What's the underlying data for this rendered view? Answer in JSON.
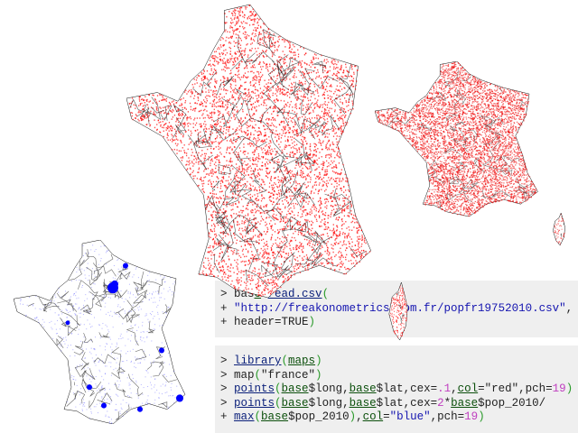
{
  "maps": [
    {
      "name": "france-red-points-large",
      "point_color": "#ff0000"
    },
    {
      "name": "france-red-points-small",
      "point_color": "#ee0000"
    },
    {
      "name": "france-blue-population",
      "point_color": "#0000ff"
    }
  ],
  "code_blocks": [
    {
      "lines": [
        [
          {
            "t": "> bas",
            "k": "plain"
          },
          {
            "t": "e",
            "k": "var"
          },
          {
            "t": "=",
            "k": "plain"
          },
          {
            "t": "read.csv",
            "k": "fn"
          },
          {
            "t": "(",
            "k": "paren"
          }
        ],
        [
          {
            "t": "+ ",
            "k": "plain"
          },
          {
            "t": "\"http://freakonometrics.com.fr/popfr19752010.csv\"",
            "k": "str"
          },
          {
            "t": ",",
            "k": "plain"
          }
        ],
        [
          {
            "t": "+ header=TRUE",
            "k": "plain"
          },
          {
            "t": ")",
            "k": "paren"
          }
        ]
      ]
    },
    {
      "lines": [
        [
          {
            "t": "> ",
            "k": "plain"
          },
          {
            "t": "library",
            "k": "fn"
          },
          {
            "t": "(",
            "k": "paren"
          },
          {
            "t": "maps",
            "k": "var"
          },
          {
            "t": ")",
            "k": "paren"
          }
        ],
        [
          {
            "t": "> map",
            "k": "plain"
          },
          {
            "t": "(",
            "k": "paren"
          },
          {
            "t": "\"france\"",
            "k": "plain"
          },
          {
            "t": ")",
            "k": "paren"
          }
        ],
        [
          {
            "t": "> ",
            "k": "plain"
          },
          {
            "t": "points",
            "k": "fn"
          },
          {
            "t": "(",
            "k": "paren"
          },
          {
            "t": "base",
            "k": "var"
          },
          {
            "t": "$long,",
            "k": "plain"
          },
          {
            "t": "base",
            "k": "var"
          },
          {
            "t": "$lat,cex=",
            "k": "plain"
          },
          {
            "t": ".1",
            "k": "num"
          },
          {
            "t": ",",
            "k": "plain"
          },
          {
            "t": "col",
            "k": "var"
          },
          {
            "t": "=\"red\",pch=",
            "k": "plain"
          },
          {
            "t": "19",
            "k": "num"
          },
          {
            "t": ")",
            "k": "paren"
          }
        ],
        [
          {
            "t": "> ",
            "k": "plain"
          },
          {
            "t": "points",
            "k": "fn"
          },
          {
            "t": "(",
            "k": "paren"
          },
          {
            "t": "base",
            "k": "var"
          },
          {
            "t": "$long,",
            "k": "plain"
          },
          {
            "t": "base",
            "k": "var"
          },
          {
            "t": "$lat,cex=",
            "k": "plain"
          },
          {
            "t": "2",
            "k": "num"
          },
          {
            "t": "*",
            "k": "plain"
          },
          {
            "t": "base",
            "k": "var"
          },
          {
            "t": "$pop_2010/",
            "k": "plain"
          }
        ],
        [
          {
            "t": "+ ",
            "k": "plain"
          },
          {
            "t": "max",
            "k": "fn"
          },
          {
            "t": "(",
            "k": "paren"
          },
          {
            "t": "base",
            "k": "var"
          },
          {
            "t": "$pop_2010",
            "k": "plain"
          },
          {
            "t": ")",
            "k": "paren"
          },
          {
            "t": ",",
            "k": "plain"
          },
          {
            "t": "col",
            "k": "var"
          },
          {
            "t": "=",
            "k": "plain"
          },
          {
            "t": "\"blue\"",
            "k": "str"
          },
          {
            "t": ",pch=",
            "k": "plain"
          },
          {
            "t": "19",
            "k": "num"
          },
          {
            "t": ")",
            "k": "paren"
          }
        ]
      ]
    }
  ]
}
